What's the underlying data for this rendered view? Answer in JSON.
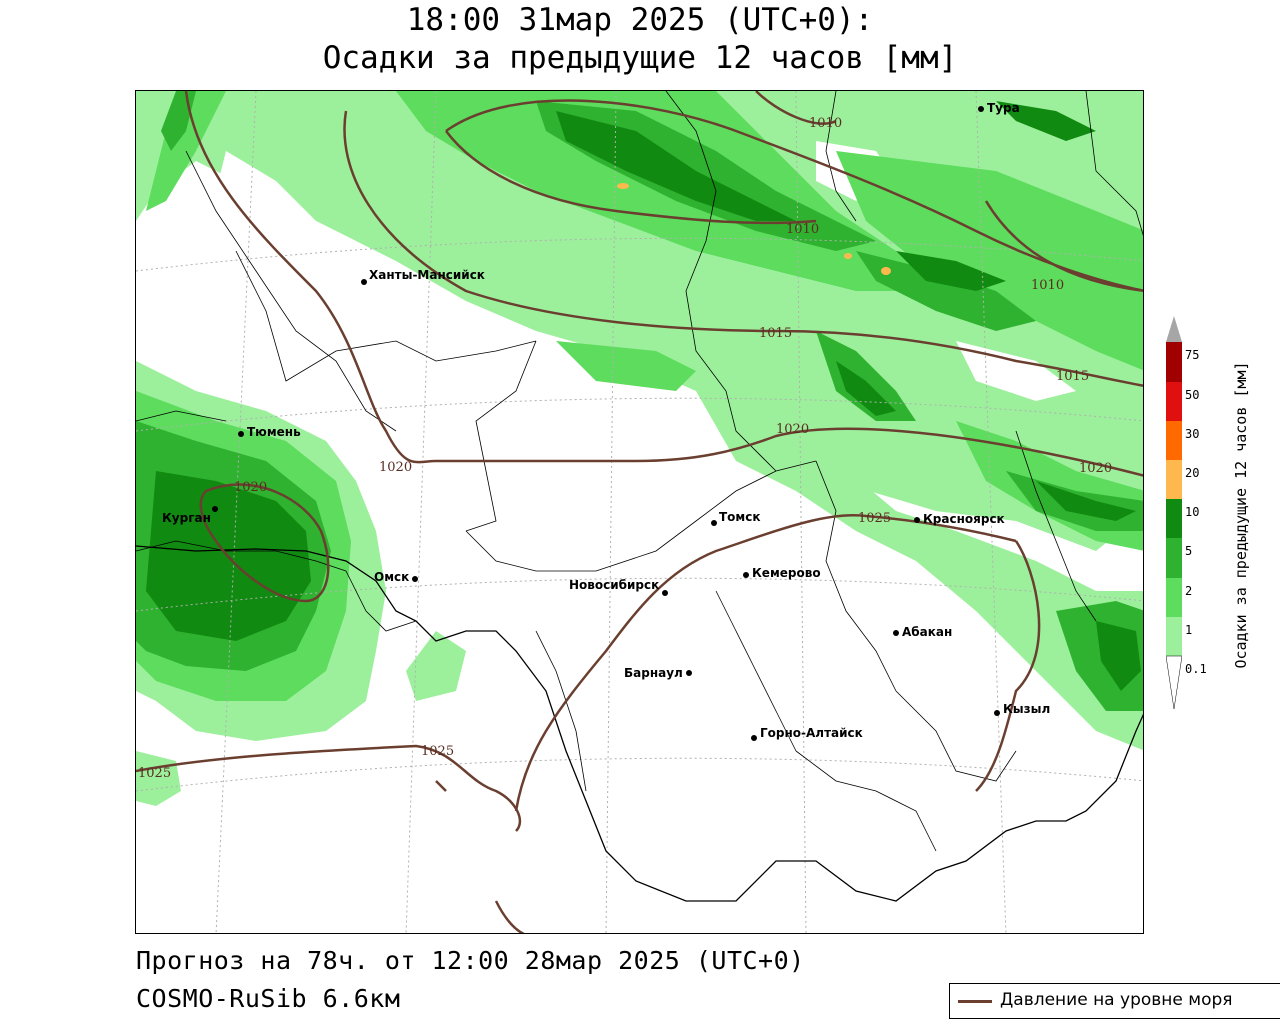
{
  "header": {
    "title_line1": "18:00 31мар 2025 (UTC+0):",
    "title_line2": "Осадки за предыдущие 12 часов [мм]"
  },
  "map": {
    "cities": [
      {
        "name": "Тура"
      },
      {
        "name": "Ханты-Мансийск"
      },
      {
        "name": "Тюмень"
      },
      {
        "name": "Курган"
      },
      {
        "name": "Омск"
      },
      {
        "name": "Новосибирск"
      },
      {
        "name": "Томск"
      },
      {
        "name": "Кемерово"
      },
      {
        "name": "Красноярск"
      },
      {
        "name": "Абакан"
      },
      {
        "name": "Барнаул"
      },
      {
        "name": "Горно-Алтайск"
      },
      {
        "name": "Кызыл"
      }
    ],
    "isobar_labels": [
      "1010",
      "1010",
      "1010",
      "1015",
      "1015",
      "1020",
      "1020",
      "1020",
      "1020",
      "1025",
      "1025",
      "1025"
    ]
  },
  "legend": {
    "title": "Осадки за предыдущие 12 часов [мм]",
    "ticks": [
      "75",
      "50",
      "30",
      "20",
      "10",
      "5",
      "2",
      "1",
      "0.1"
    ],
    "colors": [
      "#a6a6a6",
      "#a00000",
      "#e01010",
      "#ff6a00",
      "#ffb84d",
      "#108a10",
      "#2fb22f",
      "#5ddc5d",
      "#9cf09c",
      "#ffffff"
    ]
  },
  "footer": {
    "forecast": "Прогноз на 78ч. от 12:00 28мар 2025 (UTC+0)",
    "model": "COSMO-RuSib 6.6км",
    "pressure_legend": "Давление на уровне моря"
  }
}
